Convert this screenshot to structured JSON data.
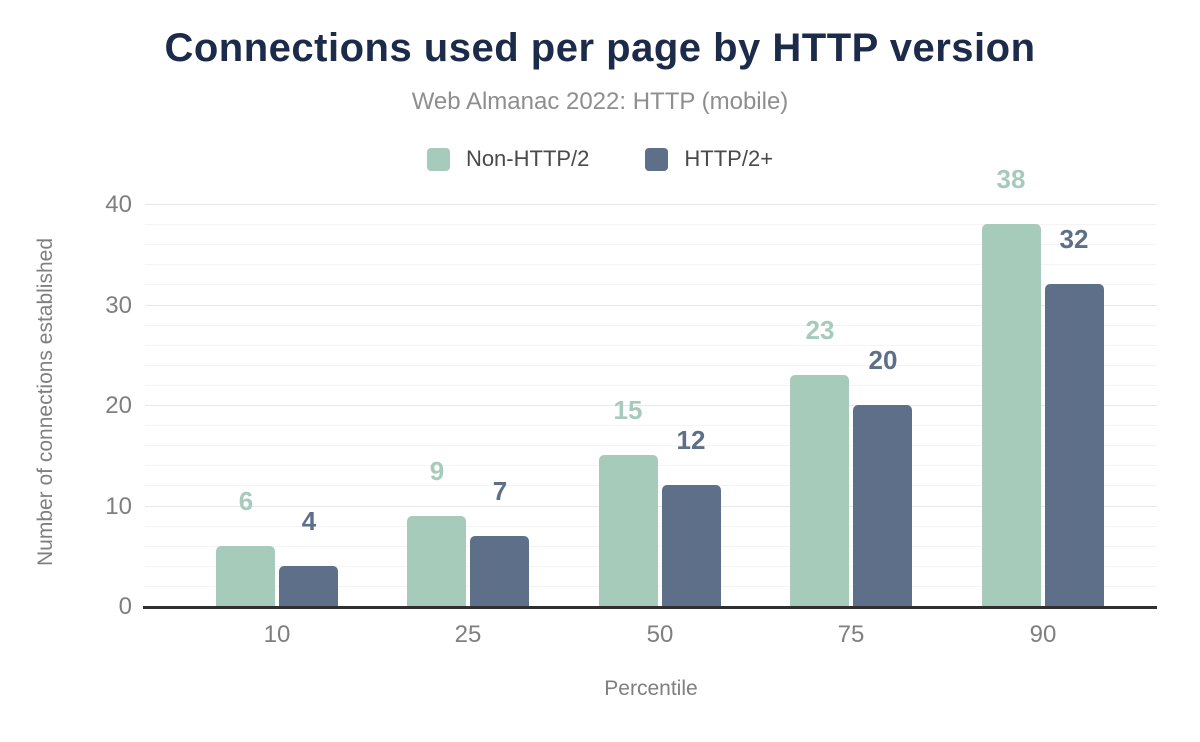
{
  "title": "Connections used per page by HTTP version",
  "subtitle": "Web Almanac 2022: HTTP (mobile)",
  "chart_data": {
    "type": "bar",
    "categories": [
      "10",
      "25",
      "50",
      "75",
      "90"
    ],
    "series": [
      {
        "name": "Non-HTTP/2",
        "color": "#a7cbba",
        "values": [
          6,
          9,
          15,
          23,
          38
        ]
      },
      {
        "name": "HTTP/2+",
        "color": "#5e7089",
        "values": [
          4,
          7,
          12,
          20,
          32
        ]
      }
    ],
    "xlabel": "Percentile",
    "ylabel": "Number of connections established",
    "ylim": [
      0,
      40
    ],
    "yticks": [
      0,
      10,
      20,
      30,
      40
    ],
    "minor_grid_step": 2,
    "grid": "horizontal",
    "legend_position": "top",
    "data_labels": "above bars, colored per series"
  },
  "colors": {
    "title": "#1c2b4a",
    "subtitle": "#8e8e8e",
    "legend_text": "#4a4a4a",
    "axis_text": "#7f7f7f",
    "axis_line": "#2f2f2f",
    "major_gridline": "#e8e8e8",
    "minor_gridline": "#f4f4f4",
    "background": "#ffffff"
  }
}
